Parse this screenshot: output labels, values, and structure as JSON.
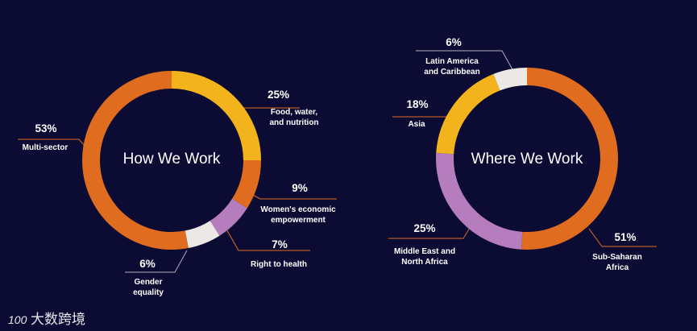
{
  "colors": {
    "background": "#0b0b33",
    "orange": "#e06d1f",
    "yellow": "#f2b31c",
    "purple": "#b57dbd",
    "light": "#ece8e6",
    "leader": "#e06d1f",
    "leader_alt": "#b0b0c0"
  },
  "watermark": {
    "logo": "100",
    "text": "大数跨境"
  },
  "chart_data": [
    {
      "type": "donut",
      "title": "How We Work",
      "slices": [
        {
          "label": "Food, water, and nutrition",
          "label_lines": [
            "Food, water,",
            "and nutrition"
          ],
          "pct_text": "25%",
          "value": 25,
          "color": "#f2b31c"
        },
        {
          "label": "Women's economic empowerment",
          "label_lines": [
            "Women's economic",
            "empowerment"
          ],
          "pct_text": "9%",
          "value": 9,
          "color": "#e06d1f"
        },
        {
          "label": "Right to health",
          "label_lines": [
            "Right to health"
          ],
          "pct_text": "7%",
          "value": 7,
          "color": "#b57dbd"
        },
        {
          "label": "Gender equality",
          "label_lines": [
            "Gender",
            "equality"
          ],
          "pct_text": "6%",
          "value": 6,
          "color": "#ece8e6"
        },
        {
          "label": "Multi-sector",
          "label_lines": [
            "Multi-sector"
          ],
          "pct_text": "53%",
          "value": 53,
          "color": "#e06d1f"
        }
      ]
    },
    {
      "type": "donut",
      "title": "Where We Work",
      "slices": [
        {
          "label": "Sub-Saharan Africa",
          "label_lines": [
            "Sub-Saharan",
            "Africa"
          ],
          "pct_text": "51%",
          "value": 51,
          "color": "#e06d1f"
        },
        {
          "label": "Middle East and North Africa",
          "label_lines": [
            "Middle East and",
            "North Africa"
          ],
          "pct_text": "25%",
          "value": 25,
          "color": "#b57dbd"
        },
        {
          "label": "Asia",
          "label_lines": [
            "Asia"
          ],
          "pct_text": "18%",
          "value": 18,
          "color": "#f2b31c"
        },
        {
          "label": "Latin America and Caribbean",
          "label_lines": [
            "Latin America",
            "and Caribbean"
          ],
          "pct_text": "6%",
          "value": 6,
          "color": "#ece8e6"
        }
      ]
    }
  ]
}
